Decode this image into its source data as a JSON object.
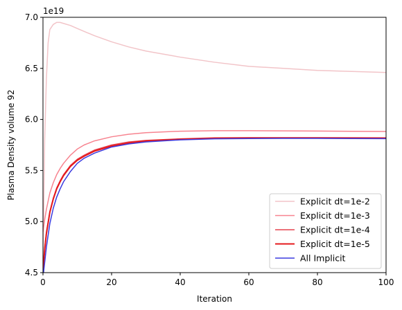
{
  "chart_data": {
    "type": "line",
    "title": "",
    "xlabel": "Iteration",
    "ylabel": "Plasma Density volume 92",
    "y_offset_label": "1e19",
    "xlim": [
      0,
      100
    ],
    "ylim": [
      4.5,
      7.0
    ],
    "xticks": [
      0,
      20,
      40,
      60,
      80,
      100
    ],
    "yticks": [
      4.5,
      5.0,
      5.5,
      6.0,
      6.5,
      7.0
    ],
    "xtick_labels": [
      "0",
      "20",
      "40",
      "60",
      "80",
      "100"
    ],
    "ytick_labels": [
      "4.5",
      "5.0",
      "5.5",
      "6.0",
      "6.5",
      "7.0"
    ],
    "grid": false,
    "legend_position": "lower-right",
    "series": [
      {
        "name": "Explicit dt=1e-2",
        "color": "#f2c4c8",
        "x": [
          0,
          0.5,
          1,
          1.5,
          2,
          3,
          4,
          5,
          6,
          8,
          10,
          15,
          20,
          25,
          30,
          40,
          50,
          60,
          70,
          80,
          90,
          100
        ],
        "y": [
          4.5,
          5.8,
          6.4,
          6.75,
          6.88,
          6.93,
          6.95,
          6.95,
          6.94,
          6.92,
          6.89,
          6.82,
          6.76,
          6.71,
          6.67,
          6.61,
          6.56,
          6.52,
          6.5,
          6.48,
          6.47,
          6.46
        ]
      },
      {
        "name": "Explicit dt=1e-3",
        "color": "#f7838f",
        "x": [
          0,
          0.5,
          1,
          2,
          3,
          4,
          5,
          6,
          8,
          10,
          12,
          15,
          20,
          25,
          30,
          40,
          50,
          60,
          70,
          80,
          90,
          100
        ],
        "y": [
          4.9,
          5.02,
          5.12,
          5.28,
          5.38,
          5.46,
          5.52,
          5.57,
          5.65,
          5.71,
          5.75,
          5.79,
          5.83,
          5.855,
          5.87,
          5.885,
          5.89,
          5.89,
          5.888,
          5.886,
          5.884,
          5.882
        ]
      },
      {
        "name": "Explicit dt=1e-4",
        "color": "#e5424f",
        "x": [
          0,
          0.5,
          1,
          2,
          3,
          4,
          5,
          6,
          8,
          10,
          12,
          15,
          20,
          25,
          30,
          40,
          50,
          60,
          70,
          80,
          90,
          100
        ],
        "y": [
          4.55,
          4.75,
          4.9,
          5.1,
          5.23,
          5.33,
          5.4,
          5.46,
          5.55,
          5.61,
          5.65,
          5.7,
          5.75,
          5.78,
          5.795,
          5.81,
          5.82,
          5.822,
          5.822,
          5.822,
          5.821,
          5.82
        ]
      },
      {
        "name": "Explicit dt=1e-5",
        "color": "#e41a1c",
        "x": [
          0,
          0.5,
          1,
          2,
          3,
          4,
          5,
          6,
          8,
          10,
          12,
          15,
          20,
          25,
          30,
          40,
          50,
          60,
          70,
          80,
          90,
          100
        ],
        "y": [
          4.5,
          4.72,
          4.88,
          5.09,
          5.22,
          5.32,
          5.39,
          5.45,
          5.54,
          5.6,
          5.64,
          5.69,
          5.74,
          5.77,
          5.79,
          5.805,
          5.815,
          5.818,
          5.818,
          5.818,
          5.817,
          5.816
        ]
      },
      {
        "name": "All Implicit",
        "color": "#3a3adf",
        "x": [
          0,
          0.5,
          1,
          2,
          3,
          4,
          5,
          6,
          8,
          10,
          12,
          15,
          20,
          25,
          30,
          40,
          50,
          60,
          70,
          80,
          90,
          100
        ],
        "y": [
          4.45,
          4.6,
          4.75,
          4.98,
          5.13,
          5.24,
          5.32,
          5.39,
          5.49,
          5.57,
          5.62,
          5.67,
          5.73,
          5.76,
          5.78,
          5.8,
          5.81,
          5.813,
          5.814,
          5.814,
          5.813,
          5.812
        ]
      }
    ]
  }
}
